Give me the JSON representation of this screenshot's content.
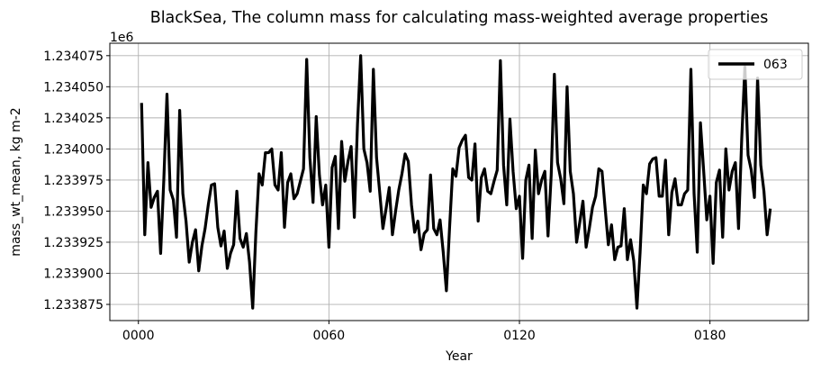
{
  "chart_data": {
    "type": "line",
    "title": "BlackSea, The column mass for calculating mass-weighted average properties",
    "xlabel": "Year",
    "ylabel": "mass_wt_mean, kg m-2",
    "offset_label": "1e6",
    "x_ticks": [
      0,
      60,
      120,
      180
    ],
    "x_tick_labels": [
      "0000",
      "0060",
      "0120",
      "0180"
    ],
    "y_ticks": [
      1233875,
      1233900,
      1233925,
      1233950,
      1233975,
      1234000,
      1234025,
      1234050,
      1234075
    ],
    "y_tick_labels": [
      "1.233875",
      "1.233900",
      "1.233925",
      "1.233950",
      "1.233975",
      "1.234000",
      "1.234025",
      "1.234050",
      "1.234075"
    ],
    "xlim": [
      -9,
      211
    ],
    "ylim": [
      1233862,
      1234085
    ],
    "grid": true,
    "legend_position": "top-right",
    "color": "#000000",
    "series": [
      {
        "name": "063",
        "x_start": 1,
        "x_step": 1,
        "values": [
          1234037,
          1233931,
          1233989,
          1233953,
          1233961,
          1233966,
          1233916,
          1233975,
          1234044,
          1233967,
          1233959,
          1233929,
          1234031,
          1233964,
          1233942,
          1233909,
          1233925,
          1233935,
          1233902,
          1233922,
          1233936,
          1233955,
          1233971,
          1233972,
          1233937,
          1233922,
          1233934,
          1233904,
          1233916,
          1233923,
          1233966,
          1233928,
          1233921,
          1233932,
          1233909,
          1233872,
          1233933,
          1233980,
          1233971,
          1233997,
          1233997,
          1234000,
          1233971,
          1233967,
          1233997,
          1233937,
          1233973,
          1233980,
          1233960,
          1233964,
          1233974,
          1233984,
          1234072,
          1233993,
          1233957,
          1234026,
          1233979,
          1233955,
          1233971,
          1233921,
          1233985,
          1233994,
          1233936,
          1234006,
          1233974,
          1233990,
          1234002,
          1233945,
          1234020,
          1234075,
          1234000,
          1233989,
          1233966,
          1234064,
          1233993,
          1233965,
          1233936,
          1233952,
          1233969,
          1233931,
          1233950,
          1233967,
          1233980,
          1233996,
          1233990,
          1233955,
          1233933,
          1233942,
          1233919,
          1233932,
          1233935,
          1233979,
          1233936,
          1233931,
          1233943,
          1233917,
          1233886,
          1233937,
          1233984,
          1233978,
          1234001,
          1234007,
          1234011,
          1233977,
          1233975,
          1234004,
          1233942,
          1233977,
          1233984,
          1233966,
          1233964,
          1233974,
          1233983,
          1234071,
          1233987,
          1233955,
          1234024,
          1233982,
          1233952,
          1233962,
          1233912,
          1233975,
          1233987,
          1233928,
          1233999,
          1233964,
          1233975,
          1233982,
          1233930,
          1233979,
          1234060,
          1233989,
          1233976,
          1233956,
          1234050,
          1233982,
          1233964,
          1233925,
          1233941,
          1233958,
          1233921,
          1233936,
          1233953,
          1233962,
          1233984,
          1233982,
          1233952,
          1233923,
          1233939,
          1233911,
          1233921,
          1233922,
          1233952,
          1233911,
          1233927,
          1233910,
          1233872,
          1233917,
          1233971,
          1233964,
          1233988,
          1233992,
          1233993,
          1233962,
          1233962,
          1233991,
          1233931,
          1233965,
          1233976,
          1233955,
          1233955,
          1233964,
          1233967,
          1234064,
          1233964,
          1233917,
          1234021,
          1233983,
          1233943,
          1233962,
          1233908,
          1233973,
          1233983,
          1233929,
          1234000,
          1233967,
          1233982,
          1233989,
          1233936,
          1234008,
          1234066,
          1233995,
          1233983,
          1233961,
          1234057,
          1233987,
          1233966,
          1233931,
          1233952
        ]
      }
    ]
  }
}
